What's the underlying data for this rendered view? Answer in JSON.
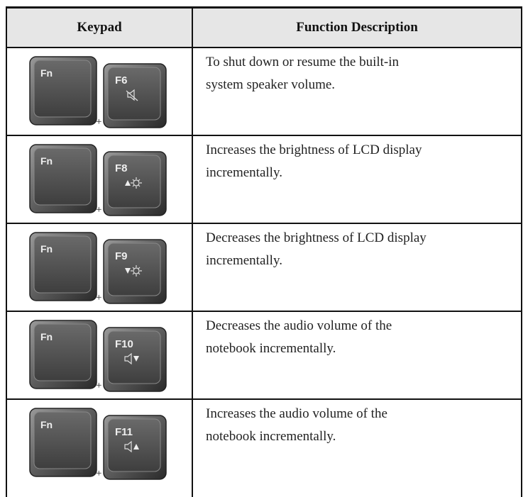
{
  "table": {
    "header": [
      "Keypad",
      "Function Description"
    ],
    "rows": [
      {
        "keys": [
          "Fn",
          "F6"
        ],
        "plus": "+",
        "description": [
          "To shut down or resume the built-in",
          "system speaker volume."
        ]
      },
      {
        "keys": [
          "Fn",
          "F8"
        ],
        "plus": "+",
        "description": [
          "Increases the brightness of LCD display",
          "incrementally."
        ]
      },
      {
        "keys": [
          "Fn",
          "F9"
        ],
        "plus": "+",
        "description": [
          "Decreases the brightness of LCD display",
          "incrementally."
        ]
      },
      {
        "keys": [
          "Fn",
          "F10"
        ],
        "plus": "+",
        "description": [
          "Decreases the audio volume of the",
          "notebook incrementally."
        ]
      },
      {
        "keys": [
          "Fn",
          "F11"
        ],
        "plus": "+",
        "description": [
          "Increases the audio volume of the",
          "notebook incrementally."
        ]
      }
    ]
  }
}
